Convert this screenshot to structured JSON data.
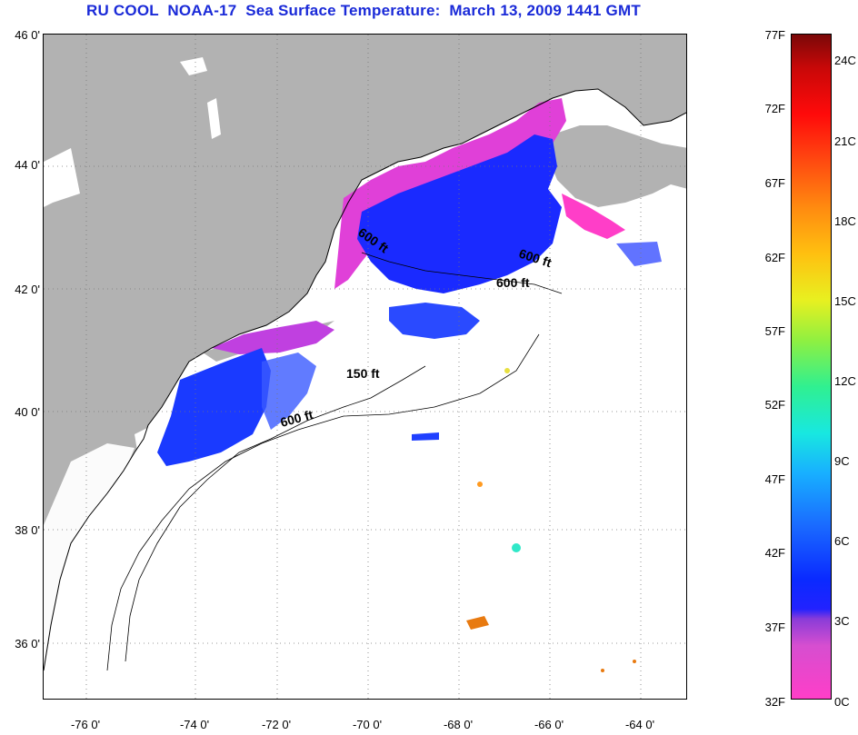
{
  "title": "RU COOL  NOAA-17  Sea Surface Temperature:  March 13, 2009 1441 GMT",
  "map": {
    "lat_labels": [
      "46 0'",
      "44 0'",
      "42 0'",
      "40 0'",
      "38 0'",
      "36 0'"
    ],
    "lon_labels": [
      "-76 0'",
      "-74 0'",
      "-72 0'",
      "-70 0'",
      "-68 0'",
      "-66 0'",
      "-64 0'"
    ],
    "isobath_labels": [
      "600 ft",
      "600 ft",
      "600 ft",
      "150 ft",
      "600 ft"
    ],
    "colors": {
      "land": "#b2b2b2",
      "water_nodata": "#ffffff",
      "cold": "#ff33cc",
      "cool": "#1a1aff"
    }
  },
  "colorbar": {
    "fahrenheit": [
      "77F",
      "72F",
      "67F",
      "62F",
      "57F",
      "52F",
      "47F",
      "42F",
      "37F",
      "32F"
    ],
    "celsius": [
      "24C",
      "21C",
      "18C",
      "15C",
      "12C",
      "9C",
      "6C",
      "3C",
      "0C"
    ]
  }
}
